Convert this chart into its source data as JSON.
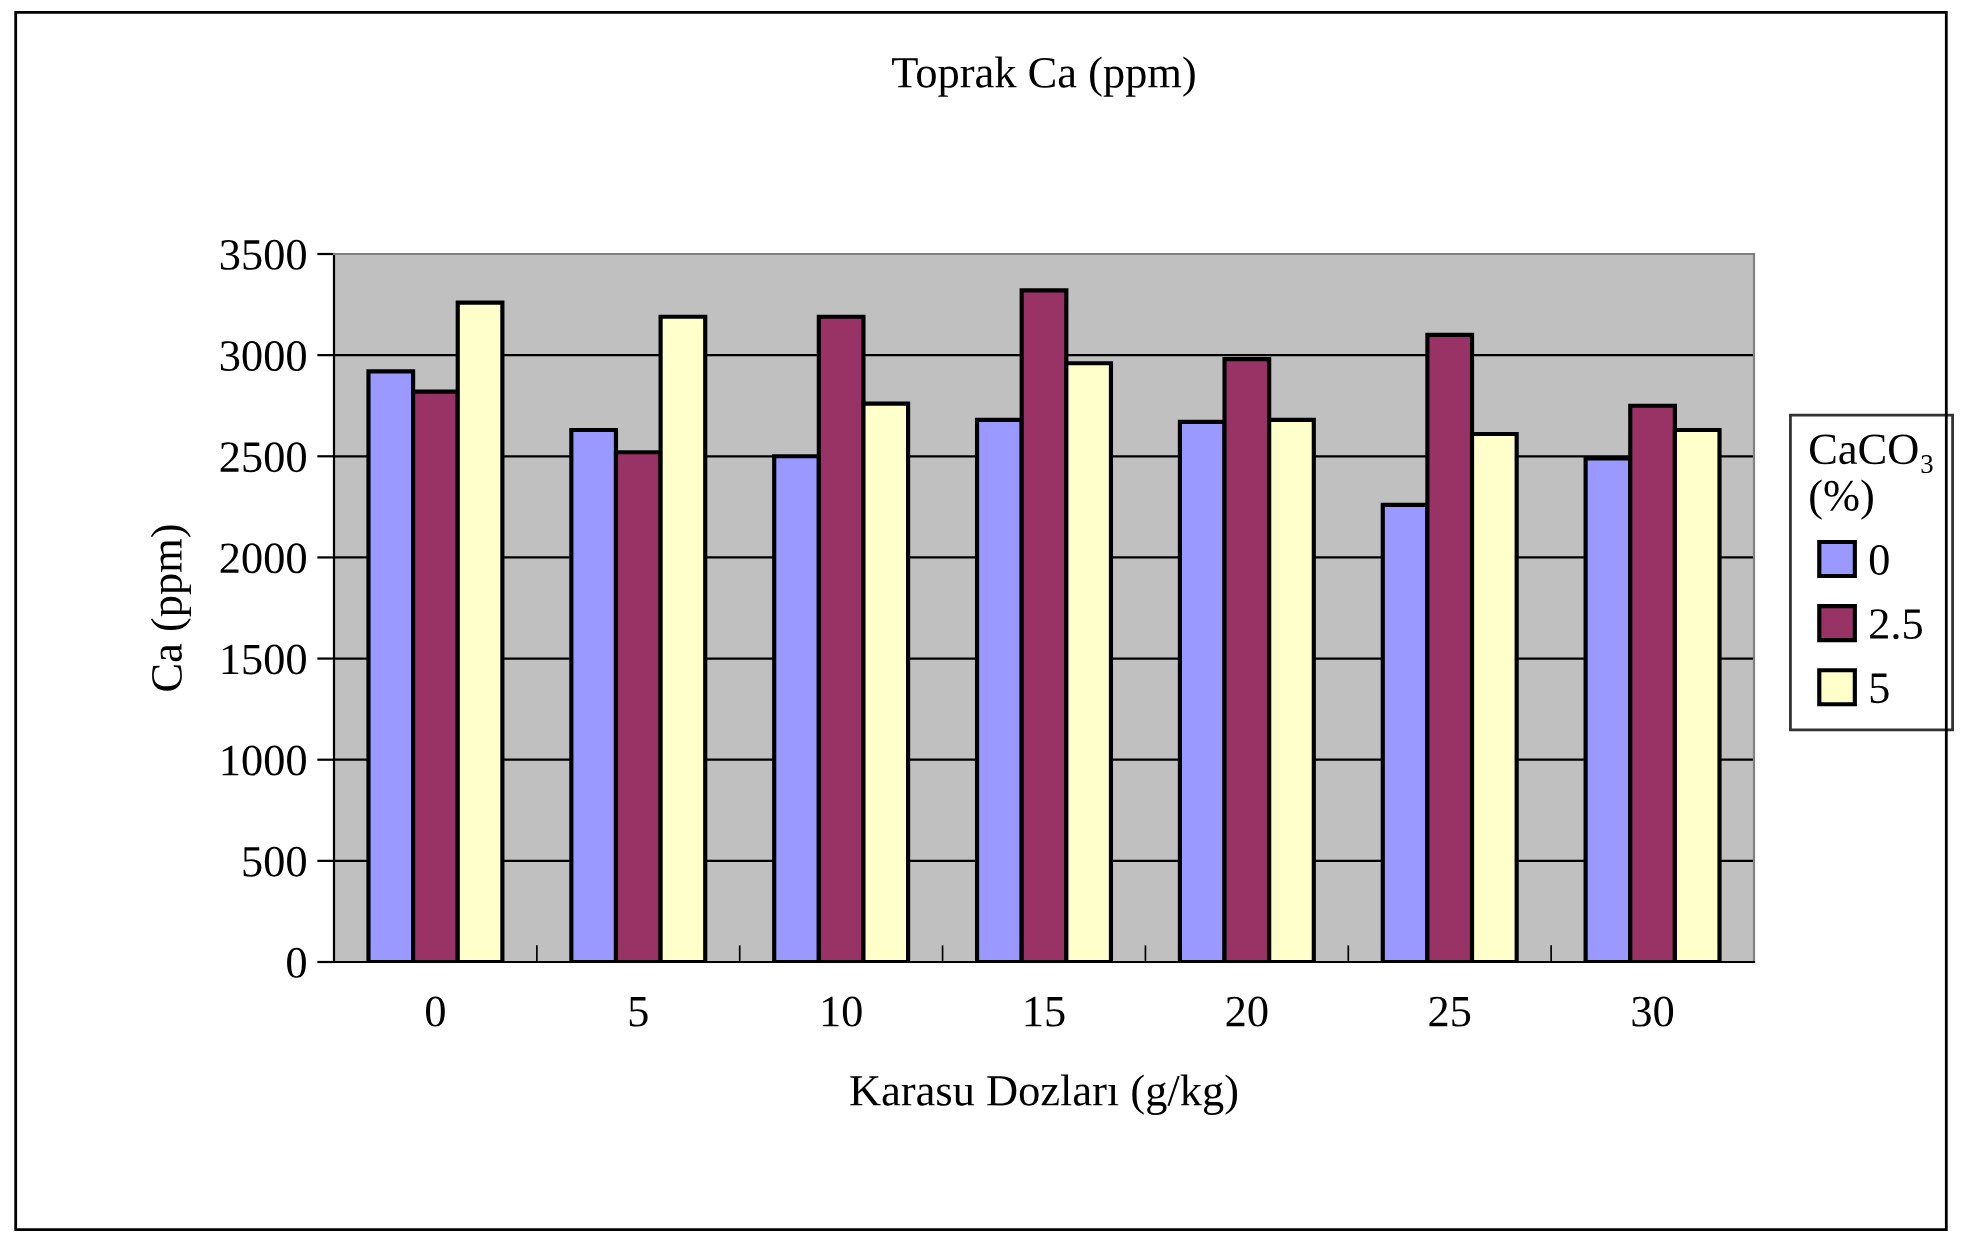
{
  "chart_data": {
    "type": "bar",
    "title": "Toprak Ca (ppm)",
    "xlabel": "Karasu Dozları (g/kg)",
    "ylabel": "Ca (ppm)",
    "legend_title": "CaCO₃\n(%)",
    "categories": [
      "0",
      "5",
      "10",
      "15",
      "20",
      "25",
      "30"
    ],
    "series": [
      {
        "name": "0",
        "color": "#9999ff",
        "values": [
          2920,
          2630,
          2500,
          2680,
          2670,
          2260,
          2490
        ]
      },
      {
        "name": "2.5",
        "color": "#993366",
        "values": [
          2820,
          2520,
          3190,
          3320,
          2980,
          3100,
          2750
        ]
      },
      {
        "name": "5",
        "color": "#ffffcc",
        "values": [
          3260,
          3190,
          2760,
          2960,
          2680,
          2610,
          2630
        ]
      }
    ],
    "ylim": [
      0,
      3500
    ],
    "yticks": [
      0,
      500,
      1000,
      1500,
      2000,
      2500,
      3000,
      3500
    ],
    "grid": "y",
    "legend": "right"
  }
}
